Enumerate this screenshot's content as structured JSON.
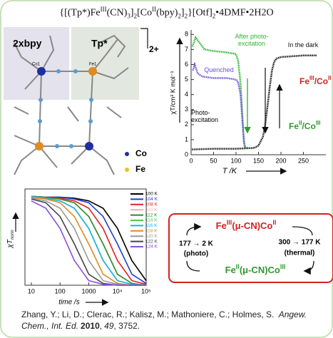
{
  "title_parts": [
    "{[(Tp*)Fe",
    "III",
    "(CN)",
    "3",
    "]",
    "2",
    "[Co",
    "II",
    "(bpy)",
    "2",
    "]",
    "2",
    "}[Otf]",
    "2",
    "•4DMF•2H2O"
  ],
  "structure": {
    "label_left": "2xbpy",
    "label_right": "Tp*",
    "charge": "2+",
    "atom_co": "Co1",
    "atom_fe": "Fe1",
    "legend": [
      "Co",
      "Fe"
    ]
  },
  "chart_data": [
    {
      "type": "line",
      "y_label": "χT/cm³ K mol⁻¹",
      "x_label": "T /K",
      "annotation": "Photo-excitation",
      "regions": [
        {
          "parts": [
            "Fe",
            "III",
            "/Co",
            "II"
          ],
          "color": "#d42020"
        },
        {
          "parts": [
            "Fe",
            "II",
            "/Co",
            "III"
          ],
          "color": "#2e9a2e"
        }
      ],
      "xlim": [
        0,
        300
      ],
      "ylim": [
        0,
        8.3
      ],
      "xticks": [
        0,
        50,
        100,
        150,
        200,
        250
      ],
      "yticks": [
        0,
        1,
        2,
        3,
        4,
        5,
        6,
        7,
        8
      ],
      "series": [
        {
          "name": "In the dark",
          "color": "#111111",
          "x": [
            2,
            50,
            100,
            140,
            150,
            160,
            165,
            170,
            175,
            180,
            185,
            190,
            200,
            250,
            280
          ],
          "values": [
            0.35,
            0.4,
            0.4,
            0.45,
            0.6,
            1.2,
            2.0,
            3.2,
            4.5,
            5.6,
            6.2,
            6.4,
            6.5,
            6.6,
            6.6
          ]
        },
        {
          "name": "After photo-excitation",
          "color": "#2db52d",
          "x": [
            3,
            10,
            20,
            30,
            50,
            80,
            100,
            105,
            110,
            113,
            116,
            118,
            120,
            125
          ],
          "values": [
            7.2,
            7.8,
            7.4,
            7.0,
            6.9,
            6.8,
            6.7,
            6.2,
            4.8,
            3.2,
            1.5,
            0.8,
            0.5,
            0.45
          ]
        },
        {
          "name": "Quenched",
          "color": "#6a4ee0",
          "x": [
            4,
            8,
            15,
            25,
            50,
            80,
            100,
            105,
            110,
            115,
            118,
            120
          ],
          "values": [
            5.6,
            6.0,
            5.4,
            5.2,
            5.1,
            5.1,
            5.0,
            4.8,
            4.0,
            2.0,
            0.8,
            0.5
          ]
        }
      ]
    },
    {
      "type": "line",
      "log_x": true,
      "y_label": [
        "χT",
        "norm"
      ],
      "x_label": "time /s",
      "xlim": [
        6,
        100000
      ],
      "ylim": [
        0,
        1.05
      ],
      "xticks": [
        10,
        100,
        1000,
        {
          "value": 10000,
          "label": "10⁴"
        },
        {
          "value": 100000,
          "label": "10⁵"
        }
      ],
      "x": [
        10,
        32,
        100,
        316,
        1000,
        3162,
        10000,
        31623,
        100000
      ],
      "series": [
        {
          "name": "100 K",
          "color": "#000000",
          "values": [
            0.97,
            0.96,
            0.96,
            0.95,
            0.92,
            0.84,
            0.62,
            0.27,
            0.05
          ]
        },
        {
          "name": "104 K",
          "color": "#1f3fd0",
          "values": [
            0.97,
            0.96,
            0.96,
            0.94,
            0.9,
            0.75,
            0.45,
            0.12,
            0.02
          ]
        },
        {
          "name": "108 K",
          "color": "#e02020",
          "values": [
            0.97,
            0.96,
            0.95,
            0.92,
            0.84,
            0.62,
            0.27,
            0.05,
            0.01
          ]
        },
        {
          "name": "110 K",
          "color": "#e8b0b0",
          "values": [
            0.97,
            0.96,
            0.94,
            0.9,
            0.75,
            0.45,
            0.12,
            0.02,
            0
          ]
        },
        {
          "name": "112 K",
          "color": "#2a8a2a",
          "values": [
            0.97,
            0.96,
            0.94,
            0.9,
            0.75,
            0.45,
            0.12,
            0.02,
            0
          ]
        },
        {
          "name": "114 K",
          "color": "#50c850",
          "values": [
            0.97,
            0.95,
            0.92,
            0.84,
            0.62,
            0.27,
            0.05,
            0.01,
            0
          ]
        },
        {
          "name": "116 K",
          "color": "#20b0e0",
          "values": [
            0.97,
            0.95,
            0.92,
            0.84,
            0.62,
            0.27,
            0.05,
            0.01,
            0
          ]
        },
        {
          "name": "118 K",
          "color": "#e08a20",
          "values": [
            0.96,
            0.94,
            0.9,
            0.75,
            0.45,
            0.12,
            0.02,
            0,
            0
          ]
        },
        {
          "name": "120 K",
          "color": "#999999",
          "values": [
            0.95,
            0.92,
            0.84,
            0.62,
            0.27,
            0.05,
            0.01,
            0,
            0
          ]
        },
        {
          "name": "122 K",
          "color": "#444444",
          "values": [
            0.94,
            0.9,
            0.75,
            0.45,
            0.12,
            0.02,
            0,
            0,
            0
          ]
        },
        {
          "name": "124 K",
          "color": "#8a4fe0",
          "values": [
            0.92,
            0.84,
            0.62,
            0.27,
            0.05,
            0.01,
            0,
            0,
            0
          ]
        }
      ]
    }
  ],
  "scheme": {
    "top": [
      "Fe",
      "III",
      "(μ-CN)Co",
      "II"
    ],
    "bottom": [
      "Fe",
      "II",
      "(μ-CN)Co",
      "III"
    ],
    "left": [
      "177 → 2 K",
      "(photo)"
    ],
    "right": [
      "300 → 177 K",
      "(thermal)"
    ]
  },
  "citation": [
    "Zhang, Y.; Li, D.; Clerac, R.; Kalisz, M.; Mathoniere, C.; Holmes, S.",
    "Angew. Chem., Int. Ed.",
    "2010",
    ",",
    "49",
    ", 3752."
  ]
}
